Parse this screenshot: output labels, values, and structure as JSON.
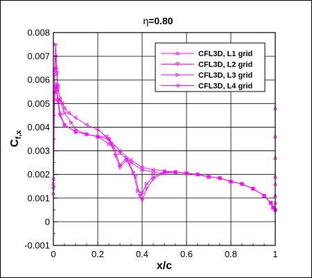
{
  "chart_data": {
    "type": "line",
    "title": "η=0.80",
    "xlabel": "x/c",
    "ylabel": "C",
    "ylabel_sub": "f,x",
    "xlim": [
      0,
      1
    ],
    "ylim": [
      -0.001,
      0.008
    ],
    "x_ticks": [
      "0",
      "0.2",
      "0.4",
      "0.6",
      "0.8",
      "1"
    ],
    "y_ticks": [
      "-0.001",
      "0",
      "0.001",
      "0.002",
      "0.003",
      "0.004",
      "0.005",
      "0.006",
      "0.007",
      "0.008"
    ],
    "grid": true,
    "legend_position": "top-right",
    "line_color": "#ff00ff",
    "series": [
      {
        "name": "CFL3D, L1 grid",
        "marker": "triangle-up",
        "x": [
          0.0,
          0.005,
          0.01,
          0.015,
          0.02,
          0.03,
          0.05,
          0.1,
          0.15,
          0.2,
          0.25,
          0.3,
          0.35,
          0.4,
          0.45,
          0.5,
          0.55,
          0.6,
          0.65,
          0.7,
          0.75,
          0.8,
          0.85,
          0.9,
          0.95,
          0.98,
          0.99,
          1.0
        ],
        "y": [
          0.0012,
          0.0052,
          0.0058,
          0.0056,
          0.0052,
          0.0046,
          0.0041,
          0.0038,
          0.0037,
          0.0036,
          0.0033,
          0.0029,
          0.0025,
          0.0022,
          0.0021,
          0.00205,
          0.0021,
          0.00205,
          0.002,
          0.0019,
          0.00185,
          0.0017,
          0.0016,
          0.0014,
          0.0011,
          0.0008,
          0.0006,
          0.0005
        ]
      },
      {
        "name": "CFL3D, L2 grid",
        "marker": "triangle-down",
        "x": [
          0.0,
          0.005,
          0.01,
          0.015,
          0.02,
          0.03,
          0.05,
          0.1,
          0.15,
          0.2,
          0.24,
          0.26,
          0.28,
          0.3,
          0.33,
          0.37,
          0.39,
          0.4,
          0.42,
          0.45,
          0.5,
          0.55,
          0.6,
          0.65,
          0.7,
          0.75,
          0.8,
          0.85,
          0.9,
          0.95,
          0.98,
          0.99,
          1.0
        ],
        "y": [
          0.0014,
          0.0054,
          0.0057,
          0.0055,
          0.0051,
          0.0045,
          0.0041,
          0.0038,
          0.0037,
          0.0036,
          0.0036,
          0.0033,
          0.0028,
          0.0023,
          0.0026,
          0.0019,
          0.0011,
          0.0009,
          0.0014,
          0.0018,
          0.0021,
          0.0021,
          0.00205,
          0.002,
          0.0019,
          0.00185,
          0.0017,
          0.0016,
          0.0014,
          0.0011,
          0.0008,
          0.0006,
          0.0005
        ]
      },
      {
        "name": "CFL3D, L3 grid",
        "marker": "triangle-right",
        "x": [
          0.0,
          0.005,
          0.01,
          0.015,
          0.02,
          0.03,
          0.05,
          0.08,
          0.1,
          0.15,
          0.2,
          0.25,
          0.27,
          0.3,
          0.33,
          0.36,
          0.38,
          0.4,
          0.42,
          0.45,
          0.5,
          0.55,
          0.6,
          0.65,
          0.7,
          0.75,
          0.8,
          0.85,
          0.9,
          0.95,
          0.98,
          0.99,
          1.0
        ],
        "y": [
          0.0016,
          0.0062,
          0.0075,
          0.0065,
          0.0058,
          0.0051,
          0.0046,
          0.0042,
          0.0039,
          0.0037,
          0.0036,
          0.0035,
          0.0032,
          0.0024,
          0.0027,
          0.0021,
          0.0013,
          0.0012,
          0.0016,
          0.0019,
          0.0021,
          0.0021,
          0.00205,
          0.002,
          0.0019,
          0.00185,
          0.0017,
          0.0016,
          0.0014,
          0.0011,
          0.0008,
          0.0006,
          0.0005
        ]
      },
      {
        "name": "CFL3D, L4 grid",
        "marker": "triangle-left",
        "x": [
          0.0,
          0.005,
          0.01,
          0.015,
          0.02,
          0.03,
          0.04,
          0.05,
          0.07,
          0.1,
          0.15,
          0.2,
          0.25,
          0.3,
          0.35,
          0.4,
          0.45,
          0.5,
          0.55,
          0.6,
          0.65,
          0.7,
          0.75,
          0.8,
          0.85,
          0.9,
          0.95,
          0.98,
          0.99,
          1.0
        ],
        "y": [
          0.0018,
          0.0064,
          0.007,
          0.0063,
          0.0057,
          0.0052,
          0.005,
          0.0048,
          0.0046,
          0.0044,
          0.0041,
          0.0039,
          0.0035,
          0.003,
          0.0026,
          0.0023,
          0.0022,
          0.00215,
          0.0021,
          0.00205,
          0.002,
          0.0019,
          0.00185,
          0.0017,
          0.0016,
          0.0014,
          0.0011,
          0.0008,
          0.0006,
          0.0005
        ]
      },
      {
        "name": "",
        "marker": "triangle-up",
        "x": [
          1.0,
          1.0,
          1.0,
          1.0,
          1.0,
          1.0,
          1.0,
          1.0
        ],
        "y": [
          0.0048,
          0.0036,
          0.0027,
          0.0019,
          0.0016,
          0.0011,
          0.0008,
          0.0005
        ]
      }
    ]
  }
}
